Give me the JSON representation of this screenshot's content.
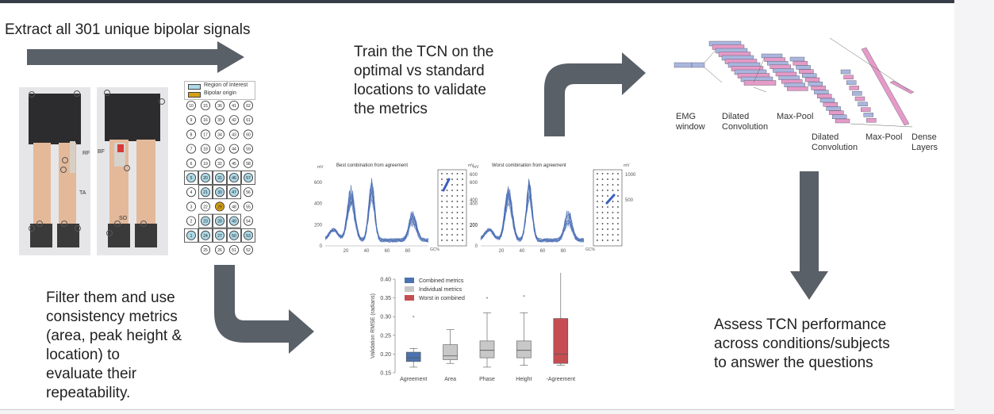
{
  "steps": {
    "extract": "Extract all 301 unique bipolar signals",
    "train_lines": [
      "Train the TCN on the",
      "optimal vs standard",
      "locations to validate",
      "the metrics"
    ],
    "filter_lines": [
      "Filter them and use",
      "consistency metrics",
      "(area, peak height &",
      "location) to",
      "evaluate their",
      "repeatability."
    ],
    "assess_lines": [
      "Assess TCN performance",
      "across conditions/subjects",
      "to answer the questions"
    ]
  },
  "photos": {
    "muscle_rf": "RF",
    "muscle_ta": "TA",
    "muscle_bf": "BF",
    "muscle_so": "SO"
  },
  "electrode_grid": {
    "legend_roi": "Region of Interest",
    "legend_bipolar": "Bipolar origin",
    "rows": [
      [
        "10",
        "15",
        "36",
        "41",
        "62"
      ],
      [
        "9",
        "16",
        "35",
        "42",
        "61"
      ],
      [
        "8",
        "17",
        "34",
        "43",
        "60"
      ],
      [
        "7",
        "18",
        "33",
        "44",
        "59"
      ],
      [
        "6",
        "19",
        "32",
        "45",
        "58"
      ],
      [
        "5",
        "20",
        "31",
        "46",
        "57"
      ],
      [
        "4",
        "21",
        "30",
        "47",
        "56"
      ],
      [
        "3",
        "22",
        "29",
        "48",
        "55"
      ],
      [
        "2",
        "23",
        "28",
        "49",
        "54"
      ],
      [
        "1",
        "24",
        "27",
        "50",
        "53"
      ],
      [
        "",
        "25",
        "26",
        "51",
        "52"
      ]
    ],
    "roi_cells": [
      "5",
      "20",
      "31",
      "46",
      "57",
      "21",
      "30",
      "47",
      "23",
      "28",
      "49",
      "1",
      "24",
      "27",
      "50",
      "53"
    ],
    "bipolar_cells": [
      "29"
    ],
    "colors": {
      "roi": "#add8e6",
      "bipolar": "#d4a017"
    }
  },
  "emg_charts": {
    "best_title": "Best combination from agreement",
    "worst_title": "Worst combination from agreement",
    "y_unit": "mV",
    "x_unit": "GC%",
    "x_ticks": [
      "20",
      "40",
      "60",
      "80"
    ],
    "best_y_ticks": [
      "0",
      "200",
      "400",
      "600"
    ],
    "worst_y_ticks": [
      "0",
      "200",
      "400",
      "600"
    ],
    "best_colorbar_ticks": [
      "600",
      "400",
      "200"
    ],
    "worst_colorbar_ticks": [
      "1000",
      "500"
    ],
    "line_color": "#4a6fb5"
  },
  "tcn_diagram": {
    "labels": {
      "emg_window": [
        "EMG",
        "window"
      ],
      "dilated_conv_1": [
        "Dilated",
        "Convolution"
      ],
      "max_pool_1": "Max-Pool",
      "dilated_conv_2": [
        "Dilated",
        "Convolution"
      ],
      "max_pool_2": "Max-Pool",
      "dense": [
        "Dense",
        "Layers"
      ]
    },
    "colors": {
      "blue": "#a9b6de",
      "pink": "#e59ac7"
    }
  },
  "chart_data": {
    "type": "box",
    "ylabel": "Validation RMSE (radians)",
    "ylim": [
      0.15,
      0.4
    ],
    "yticks": [
      "0.15",
      "0.20",
      "0.25",
      "0.30",
      "0.35",
      "0.40"
    ],
    "categories": [
      "Agreement",
      "Area",
      "Phase",
      "Height",
      "-Agreement"
    ],
    "legend": [
      "Combined metrics",
      "Individual metrics",
      "Worst in combined"
    ],
    "legend_colors": [
      "#4c72b0",
      "#c8c8c8",
      "#c44e52"
    ],
    "series": [
      {
        "name": "Agreement",
        "group": "Combined metrics",
        "min": 0.165,
        "q1": 0.18,
        "median": 0.19,
        "q3": 0.205,
        "max": 0.215,
        "outliers": [
          0.3
        ]
      },
      {
        "name": "Area",
        "group": "Individual metrics",
        "min": 0.175,
        "q1": 0.185,
        "median": 0.195,
        "q3": 0.225,
        "max": 0.265,
        "outliers": []
      },
      {
        "name": "Phase",
        "group": "Individual metrics",
        "min": 0.165,
        "q1": 0.19,
        "median": 0.21,
        "q3": 0.235,
        "max": 0.31,
        "outliers": [
          0.35
        ]
      },
      {
        "name": "Height",
        "group": "Individual metrics",
        "min": 0.17,
        "q1": 0.19,
        "median": 0.21,
        "q3": 0.235,
        "max": 0.31,
        "outliers": [
          0.355
        ]
      },
      {
        "name": "-Agreement",
        "group": "Worst in combined",
        "min": 0.17,
        "q1": 0.175,
        "median": 0.2,
        "q3": 0.295,
        "max": 0.43,
        "outliers": []
      }
    ]
  }
}
